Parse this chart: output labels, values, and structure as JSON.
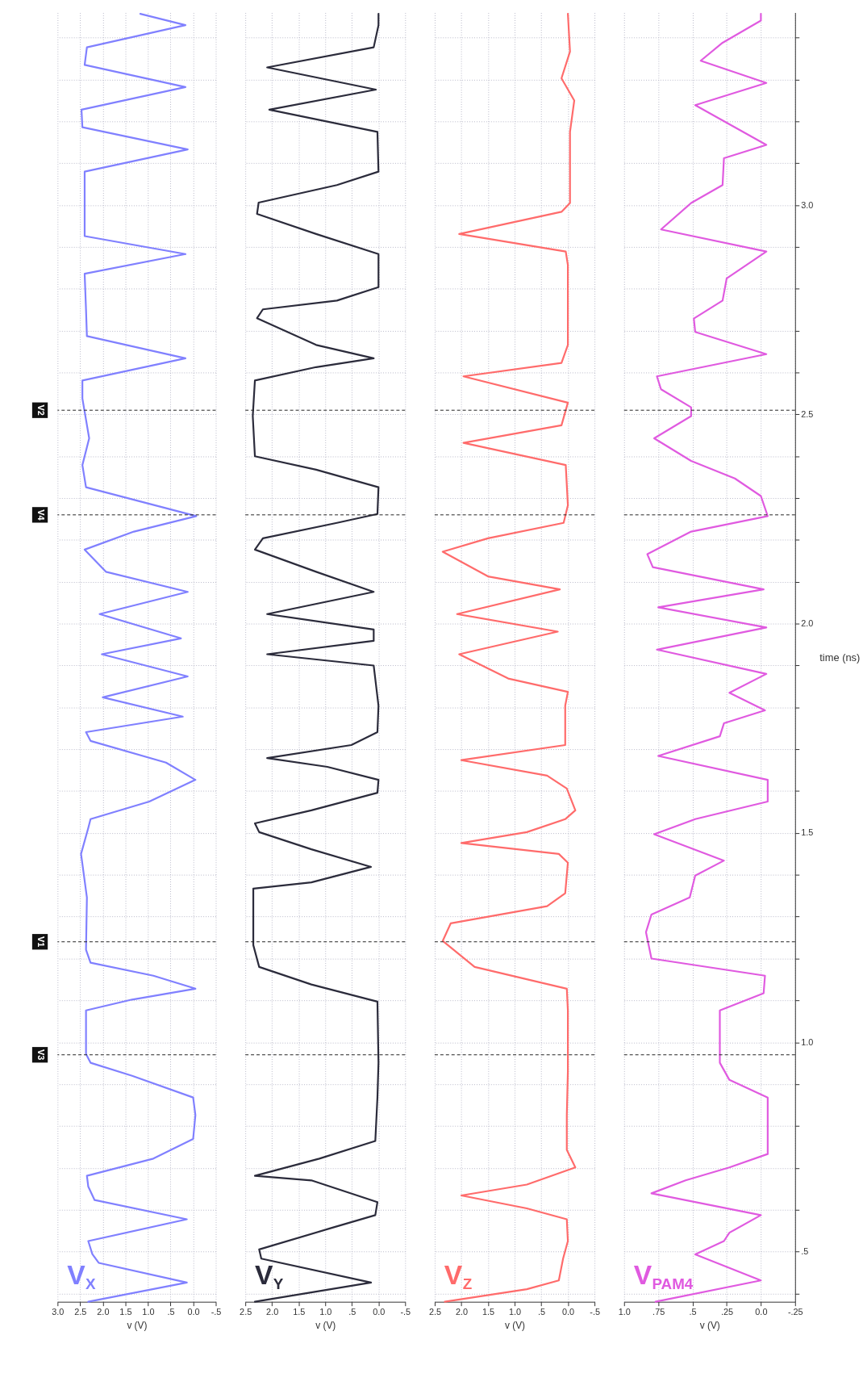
{
  "chart_data": [
    {
      "type": "line",
      "xlabel": "v (V)",
      "grid": true,
      "tick_labels": "x",
      "xlim": [
        3.0,
        -0.5
      ],
      "xticks": [
        {
          "value": 3.0,
          "label": "3.0"
        },
        {
          "value": 2.5,
          "label": "2.5"
        },
        {
          "value": 2.0,
          "label": "2.0"
        },
        {
          "value": 1.5,
          "label": "1.5"
        },
        {
          "value": 1.0,
          "label": "1.0"
        },
        {
          "value": 0.5,
          "label": ".5"
        },
        {
          "value": 0,
          "label": "0.0"
        },
        {
          "value": -0.5,
          "label": "-.5"
        }
      ],
      "ylim": [
        0.38,
        3.46
      ],
      "ref_lines": [
        {
          "axis": "y",
          "value": 0.97,
          "label": "V3"
        },
        {
          "axis": "y",
          "value": 1.24,
          "label": "V1"
        },
        {
          "axis": "y",
          "value": 2.26,
          "label": "V4"
        },
        {
          "axis": "y",
          "value": 2.51,
          "label": "V2"
        }
      ],
      "series": [
        {
          "name": "V$_{X}$",
          "color": "#8080ff",
          "values": [
            0.38,
            0.426,
            0.473,
            0.494,
            0.525,
            0.577,
            0.623,
            0.655,
            0.681,
            0.722,
            0.769,
            0.826,
            0.868,
            0.92,
            0.951,
            0.972,
            1.076,
            1.102,
            1.128,
            1.159,
            1.19,
            1.221,
            1.346,
            1.45,
            1.512,
            1.533,
            1.575,
            1.627,
            1.668,
            1.72,
            1.741,
            1.778,
            1.824,
            1.874,
            1.927,
            1.965,
            2.023,
            2.076,
            2.124,
            2.177,
            2.22,
            2.257,
            2.326,
            2.379,
            2.443,
            2.538,
            2.581,
            2.634,
            2.687,
            2.751,
            2.836,
            2.883,
            2.926,
            3.006,
            3.08,
            3.133,
            3.186,
            3.228,
            3.282,
            3.335,
            3.377,
            3.43,
            3.457
          ],
          "x": [
            2.32,
            0.14,
            2.09,
            2.23,
            2.32,
            0.14,
            2.18,
            2.32,
            2.35,
            0.88,
            0.0,
            -0.05,
            0.0,
            1.35,
            2.27,
            2.37,
            2.37,
            1.35,
            -0.05,
            0.88,
            2.27,
            2.37,
            2.35,
            2.48,
            2.32,
            2.27,
            0.97,
            -0.05,
            0.6,
            2.27,
            2.37,
            0.23,
            2.0,
            0.12,
            2.02,
            0.27,
            2.07,
            0.12,
            1.93,
            2.4,
            1.31,
            -0.07,
            2.37,
            2.45,
            2.3,
            2.45,
            2.45,
            0.17,
            2.35,
            2.37,
            2.4,
            0.17,
            2.4,
            2.4,
            2.4,
            0.12,
            2.45,
            2.47,
            0.17,
            2.4,
            2.35,
            0.17,
            1.17
          ]
        }
      ]
    },
    {
      "type": "line",
      "xlabel": "v (V)",
      "grid": true,
      "tick_labels": "x",
      "xlim": [
        2.5,
        -0.5
      ],
      "xticks": [
        {
          "value": 2.5,
          "label": "2.5"
        },
        {
          "value": 2.0,
          "label": "2.0"
        },
        {
          "value": 1.5,
          "label": "1.5"
        },
        {
          "value": 1.0,
          "label": "1.0"
        },
        {
          "value": 0.5,
          "label": ".5"
        },
        {
          "value": 0,
          "label": "0.0"
        },
        {
          "value": -0.5,
          "label": "-.5"
        }
      ],
      "ylim": [
        0.38,
        3.46
      ],
      "ref_lines": [
        {
          "axis": "y",
          "value": 0.97
        },
        {
          "axis": "y",
          "value": 1.24
        },
        {
          "axis": "y",
          "value": 2.26
        },
        {
          "axis": "y",
          "value": 2.51
        }
      ],
      "series": [
        {
          "name": "V$_{Y}$",
          "color": "#2b2b3b",
          "values": [
            0.38,
            0.426,
            0.483,
            0.505,
            0.556,
            0.587,
            0.618,
            0.67,
            0.681,
            0.722,
            0.764,
            0.868,
            0.951,
            1.097,
            1.138,
            1.18,
            1.232,
            1.367,
            1.382,
            1.419,
            1.461,
            1.502,
            1.523,
            1.554,
            1.596,
            1.627,
            1.658,
            1.679,
            1.71,
            1.741,
            1.804,
            1.9,
            1.927,
            1.959,
            1.986,
            2.023,
            2.076,
            2.124,
            2.177,
            2.204,
            2.241,
            2.262,
            2.326,
            2.368,
            2.4,
            2.496,
            2.581,
            2.613,
            2.634,
            2.666,
            2.73,
            2.751,
            2.772,
            2.804,
            2.883,
            2.931,
            2.979,
            3.006,
            3.048,
            3.08,
            3.175,
            3.228,
            3.276,
            3.329,
            3.377,
            3.43,
            3.457
          ],
          "x": [
            2.32,
            0.14,
            2.2,
            2.24,
            0.89,
            0.06,
            0.02,
            1.26,
            2.32,
            1.11,
            0.06,
            0.02,
            0.0,
            0.02,
            1.26,
            2.24,
            2.35,
            2.35,
            1.26,
            0.14,
            1.26,
            2.24,
            2.32,
            1.26,
            0.02,
            0.0,
            0.96,
            2.09,
            0.51,
            0.02,
            0.0,
            0.09,
            2.09,
            0.09,
            0.09,
            2.09,
            0.09,
            1.17,
            2.32,
            2.17,
            0.78,
            0.02,
            0.0,
            1.17,
            2.32,
            2.36,
            2.32,
            1.17,
            0.09,
            1.17,
            2.28,
            2.17,
            0.78,
            0.0,
            0.0,
            1.17,
            2.28,
            2.25,
            0.78,
            0.0,
            0.02,
            2.05,
            0.05,
            2.09,
            0.09,
            0.0,
            0.0
          ]
        }
      ]
    },
    {
      "type": "line",
      "xlabel": "v (V)",
      "grid": true,
      "tick_labels": "x",
      "xlim": [
        2.5,
        -0.5
      ],
      "xticks": [
        {
          "value": 2.5,
          "label": "2.5"
        },
        {
          "value": 2.0,
          "label": "2.0"
        },
        {
          "value": 1.5,
          "label": "1.5"
        },
        {
          "value": 1.0,
          "label": "1.0"
        },
        {
          "value": 0.5,
          "label": ".5"
        },
        {
          "value": 0,
          "label": "0.0"
        },
        {
          "value": -0.5,
          "label": "-.5"
        }
      ],
      "ylim": [
        0.38,
        3.46
      ],
      "ref_lines": [
        {
          "axis": "y",
          "value": 0.97
        },
        {
          "axis": "y",
          "value": 1.24
        },
        {
          "axis": "y",
          "value": 2.26
        },
        {
          "axis": "y",
          "value": 2.51
        }
      ],
      "series": [
        {
          "name": "V$_{Z}$",
          "color": "#ff6b6b",
          "values": [
            0.38,
            0.41,
            0.431,
            0.483,
            0.525,
            0.577,
            0.603,
            0.634,
            0.66,
            0.701,
            0.743,
            0.826,
            0.93,
            1.076,
            1.128,
            1.18,
            1.242,
            1.284,
            1.325,
            1.356,
            1.429,
            1.45,
            1.476,
            1.502,
            1.533,
            1.554,
            1.606,
            1.637,
            1.674,
            1.71,
            1.804,
            1.837,
            1.869,
            1.927,
            1.981,
            2.023,
            2.082,
            2.113,
            2.172,
            2.204,
            2.241,
            2.283,
            2.379,
            2.432,
            2.474,
            2.528,
            2.591,
            2.623,
            2.666,
            2.857,
            2.889,
            2.931,
            2.984,
            3.005,
            3.175,
            3.25,
            3.303,
            3.367,
            3.457
          ],
          "x": [
            2.31,
            0.77,
            0.17,
            0.09,
            0.0,
            0.02,
            0.77,
            2.0,
            0.77,
            -0.14,
            0.02,
            0.02,
            0.0,
            0.0,
            0.02,
            1.75,
            2.35,
            2.2,
            0.39,
            0.05,
            0.0,
            0.17,
            2.0,
            0.77,
            0.05,
            -0.14,
            0.02,
            0.39,
            2.0,
            0.05,
            0.05,
            0.0,
            1.12,
            2.04,
            0.19,
            2.08,
            0.15,
            1.5,
            2.35,
            1.5,
            0.08,
            0.0,
            0.04,
            1.96,
            0.12,
            0.0,
            1.96,
            0.12,
            0.0,
            0.0,
            0.04,
            2.04,
            0.12,
            -0.04,
            -0.04,
            -0.12,
            0.12,
            -0.04,
            0.0
          ]
        }
      ]
    },
    {
      "type": "line",
      "xlabel": "v (V)",
      "ylabel": "time (ns)",
      "grid": true,
      "xlim": [
        1.0,
        -0.25
      ],
      "xticks": [
        {
          "value": 1.0,
          "label": "1.0"
        },
        {
          "value": 0.75,
          "label": ".75"
        },
        {
          "value": 0.5,
          "label": ".5"
        },
        {
          "value": 0.25,
          "label": ".25"
        },
        {
          "value": 0,
          "label": "0.0"
        },
        {
          "value": -0.25,
          "label": "-.25"
        }
      ],
      "ylim": [
        0.38,
        3.46
      ],
      "yticks": [
        {
          "value": 0.4,
          "label": null
        },
        {
          "value": 0.5,
          "label": ".5"
        },
        {
          "value": 0.6,
          "label": null
        },
        {
          "value": 0.7,
          "label": null
        },
        {
          "value": 0.8,
          "label": null
        },
        {
          "value": 0.9,
          "label": null
        },
        {
          "value": 1.0,
          "label": "1.0"
        },
        {
          "value": 1.1,
          "label": null
        },
        {
          "value": 1.2,
          "label": null
        },
        {
          "value": 1.3,
          "label": null
        },
        {
          "value": 1.4,
          "label": null
        },
        {
          "value": 1.5,
          "label": "1.5"
        },
        {
          "value": 1.6,
          "label": null
        },
        {
          "value": 1.7,
          "label": null
        },
        {
          "value": 1.8,
          "label": null
        },
        {
          "value": 1.9,
          "label": null
        },
        {
          "value": 2.0,
          "label": "2.0"
        },
        {
          "value": 2.1,
          "label": null
        },
        {
          "value": 2.2,
          "label": null
        },
        {
          "value": 2.3,
          "label": null
        },
        {
          "value": 2.4,
          "label": null
        },
        {
          "value": 2.5,
          "label": "2.5"
        },
        {
          "value": 2.6,
          "label": null
        },
        {
          "value": 2.7,
          "label": null
        },
        {
          "value": 2.8,
          "label": null
        },
        {
          "value": 2.9,
          "label": null
        },
        {
          "value": 3.0,
          "label": "3.0"
        },
        {
          "value": 3.1,
          "label": null
        },
        {
          "value": 3.2,
          "label": null
        },
        {
          "value": 3.3,
          "label": null
        },
        {
          "value": 3.4,
          "label": null
        }
      ],
      "ref_lines": [
        {
          "axis": "y",
          "value": 0.97
        },
        {
          "axis": "y",
          "value": 1.24
        },
        {
          "axis": "y",
          "value": 2.26
        },
        {
          "axis": "y",
          "value": 2.51
        }
      ],
      "series": [
        {
          "name": "V$_{PAM4}$",
          "color": "#e05ae0",
          "values": [
            0.38,
            0.431,
            0.493,
            0.525,
            0.545,
            0.587,
            0.639,
            0.67,
            0.701,
            0.733,
            0.868,
            0.91,
            0.951,
            1.076,
            1.117,
            1.159,
            1.2,
            1.263,
            1.305,
            1.346,
            1.398,
            1.434,
            1.497,
            1.533,
            1.575,
            1.627,
            1.684,
            1.731,
            1.762,
            1.793,
            1.835,
            1.88,
            1.938,
            1.991,
            2.039,
            2.082,
            2.135,
            2.166,
            2.22,
            2.257,
            2.305,
            2.347,
            2.389,
            2.443,
            2.496,
            2.517,
            2.56,
            2.591,
            2.644,
            2.697,
            2.729,
            2.772,
            2.825,
            2.889,
            2.942,
            3.005,
            3.048,
            3.112,
            3.144,
            3.239,
            3.292,
            3.345,
            3.388,
            3.441,
            3.457
          ],
          "x": [
            0.77,
            0.0,
            0.48,
            0.27,
            0.23,
            0.0,
            0.8,
            0.55,
            0.23,
            -0.05,
            -0.05,
            0.23,
            0.3,
            0.3,
            -0.02,
            -0.03,
            0.8,
            0.84,
            0.8,
            0.52,
            0.48,
            0.27,
            0.78,
            0.48,
            -0.05,
            -0.05,
            0.75,
            0.3,
            0.27,
            -0.03,
            0.23,
            -0.04,
            0.76,
            -0.04,
            0.75,
            -0.02,
            0.79,
            0.83,
            0.51,
            -0.05,
            0.0,
            0.19,
            0.51,
            0.78,
            0.51,
            0.51,
            0.73,
            0.76,
            -0.04,
            0.48,
            0.49,
            0.28,
            0.25,
            -0.04,
            0.73,
            0.51,
            0.28,
            0.27,
            -0.04,
            0.48,
            -0.04,
            0.44,
            0.28,
            0.0,
            0.0
          ]
        }
      ]
    }
  ]
}
